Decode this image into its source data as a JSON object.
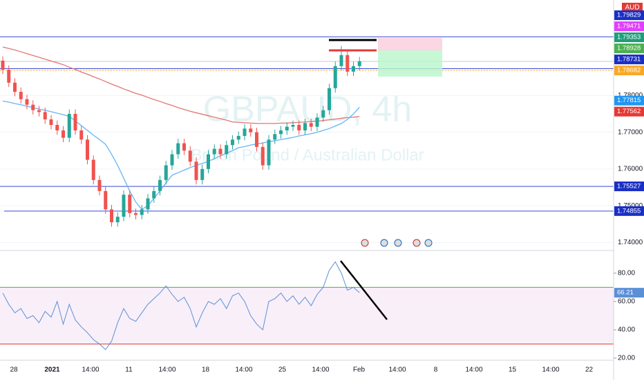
{
  "chart_data": {
    "type": "candlestick",
    "title": "GBPAUD, 4h",
    "subtitle": "British Pound / Australian Dollar",
    "currency": "AUD",
    "up_color": "#26a69a",
    "down_color": "#ef5350",
    "open": [
      1.7895,
      1.787,
      1.7835,
      1.781,
      1.779,
      1.7775,
      1.776,
      1.7755,
      1.7735,
      1.772,
      1.7705,
      1.7685,
      1.775,
      1.7705,
      1.768,
      1.7625,
      1.757,
      1.754,
      1.749,
      1.7455,
      1.747,
      1.753,
      1.748,
      1.7475,
      1.749,
      1.752,
      1.754,
      1.757,
      1.761,
      1.764,
      1.767,
      1.765,
      1.762,
      1.757,
      1.76,
      1.764,
      1.7655,
      1.764,
      1.7665,
      1.768,
      1.769,
      1.771,
      1.77,
      1.766,
      1.761,
      1.768,
      1.7695,
      1.7705,
      1.7715,
      1.772,
      1.7705,
      1.7725,
      1.7715,
      1.774,
      1.776,
      1.782,
      1.788,
      1.791,
      1.7865,
      1.788
    ],
    "high": [
      1.7907,
      1.7882,
      1.7847,
      1.7822,
      1.7802,
      1.7787,
      1.7772,
      1.7767,
      1.7747,
      1.7732,
      1.7717,
      1.7762,
      1.7762,
      1.7717,
      1.7692,
      1.7637,
      1.7582,
      1.7552,
      1.7502,
      1.7482,
      1.7542,
      1.7542,
      1.7492,
      1.7502,
      1.7532,
      1.7552,
      1.7582,
      1.7622,
      1.7652,
      1.7682,
      1.7682,
      1.7662,
      1.7632,
      1.7612,
      1.7652,
      1.7667,
      1.7667,
      1.7677,
      1.7692,
      1.7702,
      1.7722,
      1.7722,
      1.7712,
      1.7672,
      1.7692,
      1.7707,
      1.7717,
      1.7727,
      1.7732,
      1.7732,
      1.7737,
      1.7737,
      1.7752,
      1.7772,
      1.7832,
      1.7892,
      1.7935,
      1.7922,
      1.7892,
      1.7905
    ],
    "low": [
      1.7858,
      1.7823,
      1.7798,
      1.7778,
      1.7763,
      1.7748,
      1.7743,
      1.7723,
      1.7708,
      1.7693,
      1.7673,
      1.7673,
      1.7693,
      1.7668,
      1.7613,
      1.7558,
      1.7528,
      1.7478,
      1.7443,
      1.7443,
      1.7458,
      1.7468,
      1.7463,
      1.7463,
      1.7478,
      1.7508,
      1.7528,
      1.7558,
      1.7598,
      1.7628,
      1.7638,
      1.7608,
      1.7558,
      1.7558,
      1.7588,
      1.7628,
      1.7628,
      1.7628,
      1.7653,
      1.7668,
      1.7678,
      1.7688,
      1.7648,
      1.7598,
      1.7598,
      1.7668,
      1.7683,
      1.7693,
      1.7703,
      1.7693,
      1.7693,
      1.7703,
      1.7703,
      1.7728,
      1.7748,
      1.7808,
      1.7868,
      1.7853,
      1.7853,
      1.7868
    ],
    "close": [
      1.787,
      1.7835,
      1.781,
      1.779,
      1.7775,
      1.776,
      1.7755,
      1.7735,
      1.772,
      1.7705,
      1.7685,
      1.775,
      1.7705,
      1.768,
      1.7625,
      1.757,
      1.754,
      1.749,
      1.7455,
      1.747,
      1.753,
      1.748,
      1.7475,
      1.749,
      1.752,
      1.754,
      1.757,
      1.761,
      1.764,
      1.767,
      1.765,
      1.762,
      1.757,
      1.76,
      1.764,
      1.7655,
      1.764,
      1.7665,
      1.768,
      1.769,
      1.771,
      1.77,
      1.766,
      1.761,
      1.768,
      1.7695,
      1.7705,
      1.7715,
      1.772,
      1.7705,
      1.7725,
      1.7715,
      1.774,
      1.776,
      1.782,
      1.788,
      1.791,
      1.7865,
      1.788,
      1.7893
    ],
    "moving_averages": [
      {
        "color": "#e57373",
        "values": [
          1.7932,
          1.7928,
          1.7924,
          1.7919,
          1.7914,
          1.7909,
          1.7904,
          1.7899,
          1.7894,
          1.7889,
          1.7884,
          1.7877,
          1.7871,
          1.7864,
          1.7858,
          1.7851,
          1.7845,
          1.7838,
          1.7831,
          1.7825,
          1.7818,
          1.7812,
          1.7806,
          1.7801,
          1.7795,
          1.7789,
          1.7784,
          1.7778,
          1.7773,
          1.7767,
          1.7762,
          1.7757,
          1.7753,
          1.7749,
          1.7745,
          1.7741,
          1.7737,
          1.7733,
          1.7728,
          1.7727,
          1.7726,
          1.7725,
          1.7724,
          1.7724,
          1.7724,
          1.7724,
          1.7725,
          1.7725,
          1.7726,
          1.7727,
          1.7728,
          1.7729,
          1.773,
          1.7732,
          1.7734,
          1.7736,
          1.7738,
          1.774,
          1.7741,
          1.7743
        ]
      },
      {
        "color": "#64b5f6",
        "values": [
          1.7785,
          1.7782,
          1.7778,
          1.7775,
          1.7771,
          1.7767,
          1.7763,
          1.776,
          1.7756,
          1.7752,
          1.7748,
          1.7743,
          1.7731,
          1.7718,
          1.7705,
          1.7692,
          1.768,
          1.7667,
          1.764,
          1.761,
          1.7575,
          1.754,
          1.751,
          1.749,
          1.75,
          1.752,
          1.754,
          1.7562,
          1.7583,
          1.759,
          1.7597,
          1.7604,
          1.761,
          1.7615,
          1.7621,
          1.7628,
          1.7636,
          1.7643,
          1.765,
          1.7658,
          1.7661,
          1.7665,
          1.7668,
          1.7671,
          1.7674,
          1.7677,
          1.768,
          1.7683,
          1.7686,
          1.769,
          1.7693,
          1.7696,
          1.77,
          1.7705,
          1.771,
          1.7717,
          1.7724,
          1.7735,
          1.775,
          1.7768
        ]
      }
    ],
    "ylim": [
      1.738,
      1.806
    ],
    "yticks": [
      {
        "value": 1.74,
        "label": "1.74000"
      },
      {
        "value": 1.75,
        "label": "1.75000"
      },
      {
        "value": 1.76,
        "label": "1.76000"
      },
      {
        "value": 1.77,
        "label": "1.77000"
      },
      {
        "value": 1.78,
        "label": "1.78000"
      }
    ],
    "levels": [
      {
        "value": 1.79598,
        "color": "#3949d6"
      },
      {
        "value": 1.78928,
        "color": "#c8c8c8"
      },
      {
        "value": 1.78731,
        "color": "#3949d6"
      },
      {
        "value": 1.78682,
        "color": "#f9a825",
        "style": "dotted"
      },
      {
        "value": 1.75527,
        "color": "#3949d6"
      },
      {
        "value": 1.74855,
        "color": "#3949d6"
      }
    ],
    "price_tags": [
      {
        "value": 1.79829,
        "color": "#1a2fc4"
      },
      {
        "value": 1.79471,
        "color": "#e040fb"
      },
      {
        "value": 1.79353,
        "color": "#1e9e7a"
      },
      {
        "value": 1.78928,
        "color": "#4caf50"
      },
      {
        "value": 1.78731,
        "color": "#1a2fc4"
      },
      {
        "value": 1.78682,
        "color": "#f9a825"
      },
      {
        "value": 1.77815,
        "color": "#2196f3"
      },
      {
        "value": 1.77562,
        "color": "#e53935"
      },
      {
        "value": 1.75527,
        "color": "#1a2fc4"
      },
      {
        "value": 1.74855,
        "color": "#1a2fc4"
      }
    ],
    "x_labels": [
      "28",
      "2021",
      "14:00",
      "11",
      "14:00",
      "18",
      "14:00",
      "25",
      "14:00",
      "Feb",
      "14:00",
      "8",
      "14:00",
      "15",
      "14:00",
      "22"
    ],
    "rsi": {
      "color": "#5b8fd6",
      "values": [
        66,
        58,
        52,
        55,
        48,
        50,
        45,
        53,
        49,
        60,
        44,
        58,
        47,
        42,
        38,
        33,
        30,
        26,
        32,
        45,
        55,
        48,
        46,
        52,
        58,
        62,
        66,
        71,
        65,
        60,
        63,
        55,
        42,
        52,
        60,
        58,
        62,
        55,
        64,
        66,
        60,
        50,
        44,
        40,
        60,
        62,
        66,
        60,
        64,
        58,
        63,
        57,
        65,
        70,
        82,
        88,
        80,
        68,
        70,
        66.21
      ],
      "ylim": [
        19.5,
        96
      ],
      "yticks": [
        {
          "value": 20,
          "label": "20.00"
        },
        {
          "value": 40,
          "label": "40.00"
        },
        {
          "value": 60,
          "label": "60.00"
        },
        {
          "value": 80,
          "label": "80.00"
        }
      ],
      "upper": 70,
      "lower": 30
    }
  }
}
